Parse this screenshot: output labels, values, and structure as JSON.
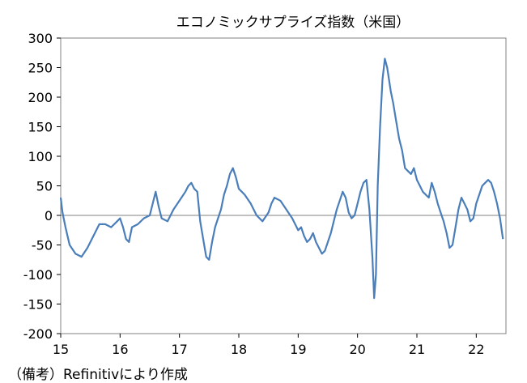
{
  "chart_data": {
    "type": "line",
    "title": "エコノミックサプライズ指数（米国）",
    "xlabel": "",
    "ylabel": "",
    "ylim": [
      -200,
      300
    ],
    "xlim": [
      2015,
      2022.5
    ],
    "y_ticks": [
      300,
      250,
      200,
      150,
      100,
      50,
      0,
      -50,
      -100,
      -150,
      -200
    ],
    "x_tick_labels": [
      "15",
      "16",
      "17",
      "18",
      "19",
      "20",
      "21",
      "22"
    ],
    "x_tick_values": [
      2015,
      2016,
      2017,
      2018,
      2019,
      2020,
      2021,
      2022
    ],
    "grid": false,
    "zero_line": true,
    "line_color": "#4a7ebb",
    "series": [
      {
        "x": [
          2015.0,
          2015.03,
          2015.08,
          2015.15,
          2015.25,
          2015.35,
          2015.45,
          2015.55,
          2015.65,
          2015.75,
          2015.85,
          2015.95,
          2016.0,
          2016.05,
          2016.1,
          2016.15,
          2016.2,
          2016.3,
          2016.4,
          2016.5,
          2016.6,
          2016.65,
          2016.7,
          2016.8,
          2016.9,
          2017.0,
          2017.1,
          2017.15,
          2017.2,
          2017.25,
          2017.3,
          2017.35,
          2017.4,
          2017.45,
          2017.5,
          2017.55,
          2017.6,
          2017.65,
          2017.7,
          2017.75,
          2017.8,
          2017.85,
          2017.9,
          2017.95,
          2018.0,
          2018.05,
          2018.1,
          2018.2,
          2018.3,
          2018.4,
          2018.5,
          2018.55,
          2018.6,
          2018.7,
          2018.8,
          2018.9,
          2019.0,
          2019.05,
          2019.1,
          2019.15,
          2019.2,
          2019.25,
          2019.3,
          2019.35,
          2019.4,
          2019.45,
          2019.5,
          2019.55,
          2019.6,
          2019.65,
          2019.7,
          2019.75,
          2019.8,
          2019.85,
          2019.9,
          2019.95,
          2020.0,
          2020.05,
          2020.1,
          2020.15,
          2020.2,
          2020.25,
          2020.28,
          2020.31,
          2020.34,
          2020.38,
          2020.42,
          2020.46,
          2020.5,
          2020.53,
          2020.56,
          2020.6,
          2020.65,
          2020.7,
          2020.75,
          2020.8,
          2020.85,
          2020.9,
          2020.95,
          2021.0,
          2021.05,
          2021.1,
          2021.15,
          2021.2,
          2021.25,
          2021.3,
          2021.35,
          2021.4,
          2021.45,
          2021.5,
          2021.55,
          2021.6,
          2021.65,
          2021.7,
          2021.75,
          2021.8,
          2021.85,
          2021.9,
          2021.95,
          2022.0,
          2022.05,
          2022.1,
          2022.15,
          2022.2,
          2022.25,
          2022.3,
          2022.35,
          2022.4,
          2022.45
        ],
        "y": [
          30,
          5,
          -20,
          -50,
          -65,
          -70,
          -55,
          -35,
          -15,
          -15,
          -20,
          -10,
          -5,
          -20,
          -40,
          -45,
          -20,
          -15,
          -5,
          0,
          40,
          15,
          -5,
          -10,
          10,
          25,
          40,
          50,
          55,
          45,
          40,
          -10,
          -40,
          -70,
          -75,
          -45,
          -20,
          -5,
          10,
          35,
          50,
          70,
          80,
          65,
          45,
          40,
          35,
          20,
          0,
          -10,
          5,
          20,
          30,
          25,
          10,
          -5,
          -25,
          -20,
          -35,
          -45,
          -40,
          -30,
          -45,
          -55,
          -65,
          -60,
          -45,
          -30,
          -10,
          10,
          25,
          40,
          30,
          5,
          -5,
          0,
          20,
          40,
          55,
          60,
          10,
          -70,
          -140,
          -100,
          50,
          150,
          230,
          265,
          250,
          230,
          210,
          190,
          160,
          130,
          110,
          80,
          75,
          70,
          80,
          60,
          50,
          40,
          35,
          30,
          55,
          40,
          20,
          5,
          -10,
          -30,
          -55,
          -50,
          -20,
          10,
          30,
          20,
          10,
          -10,
          -5,
          20,
          35,
          50,
          55,
          60,
          55,
          40,
          20,
          -5,
          -40
        ]
      }
    ]
  },
  "footnote": "（備考）Refinitivにより作成"
}
